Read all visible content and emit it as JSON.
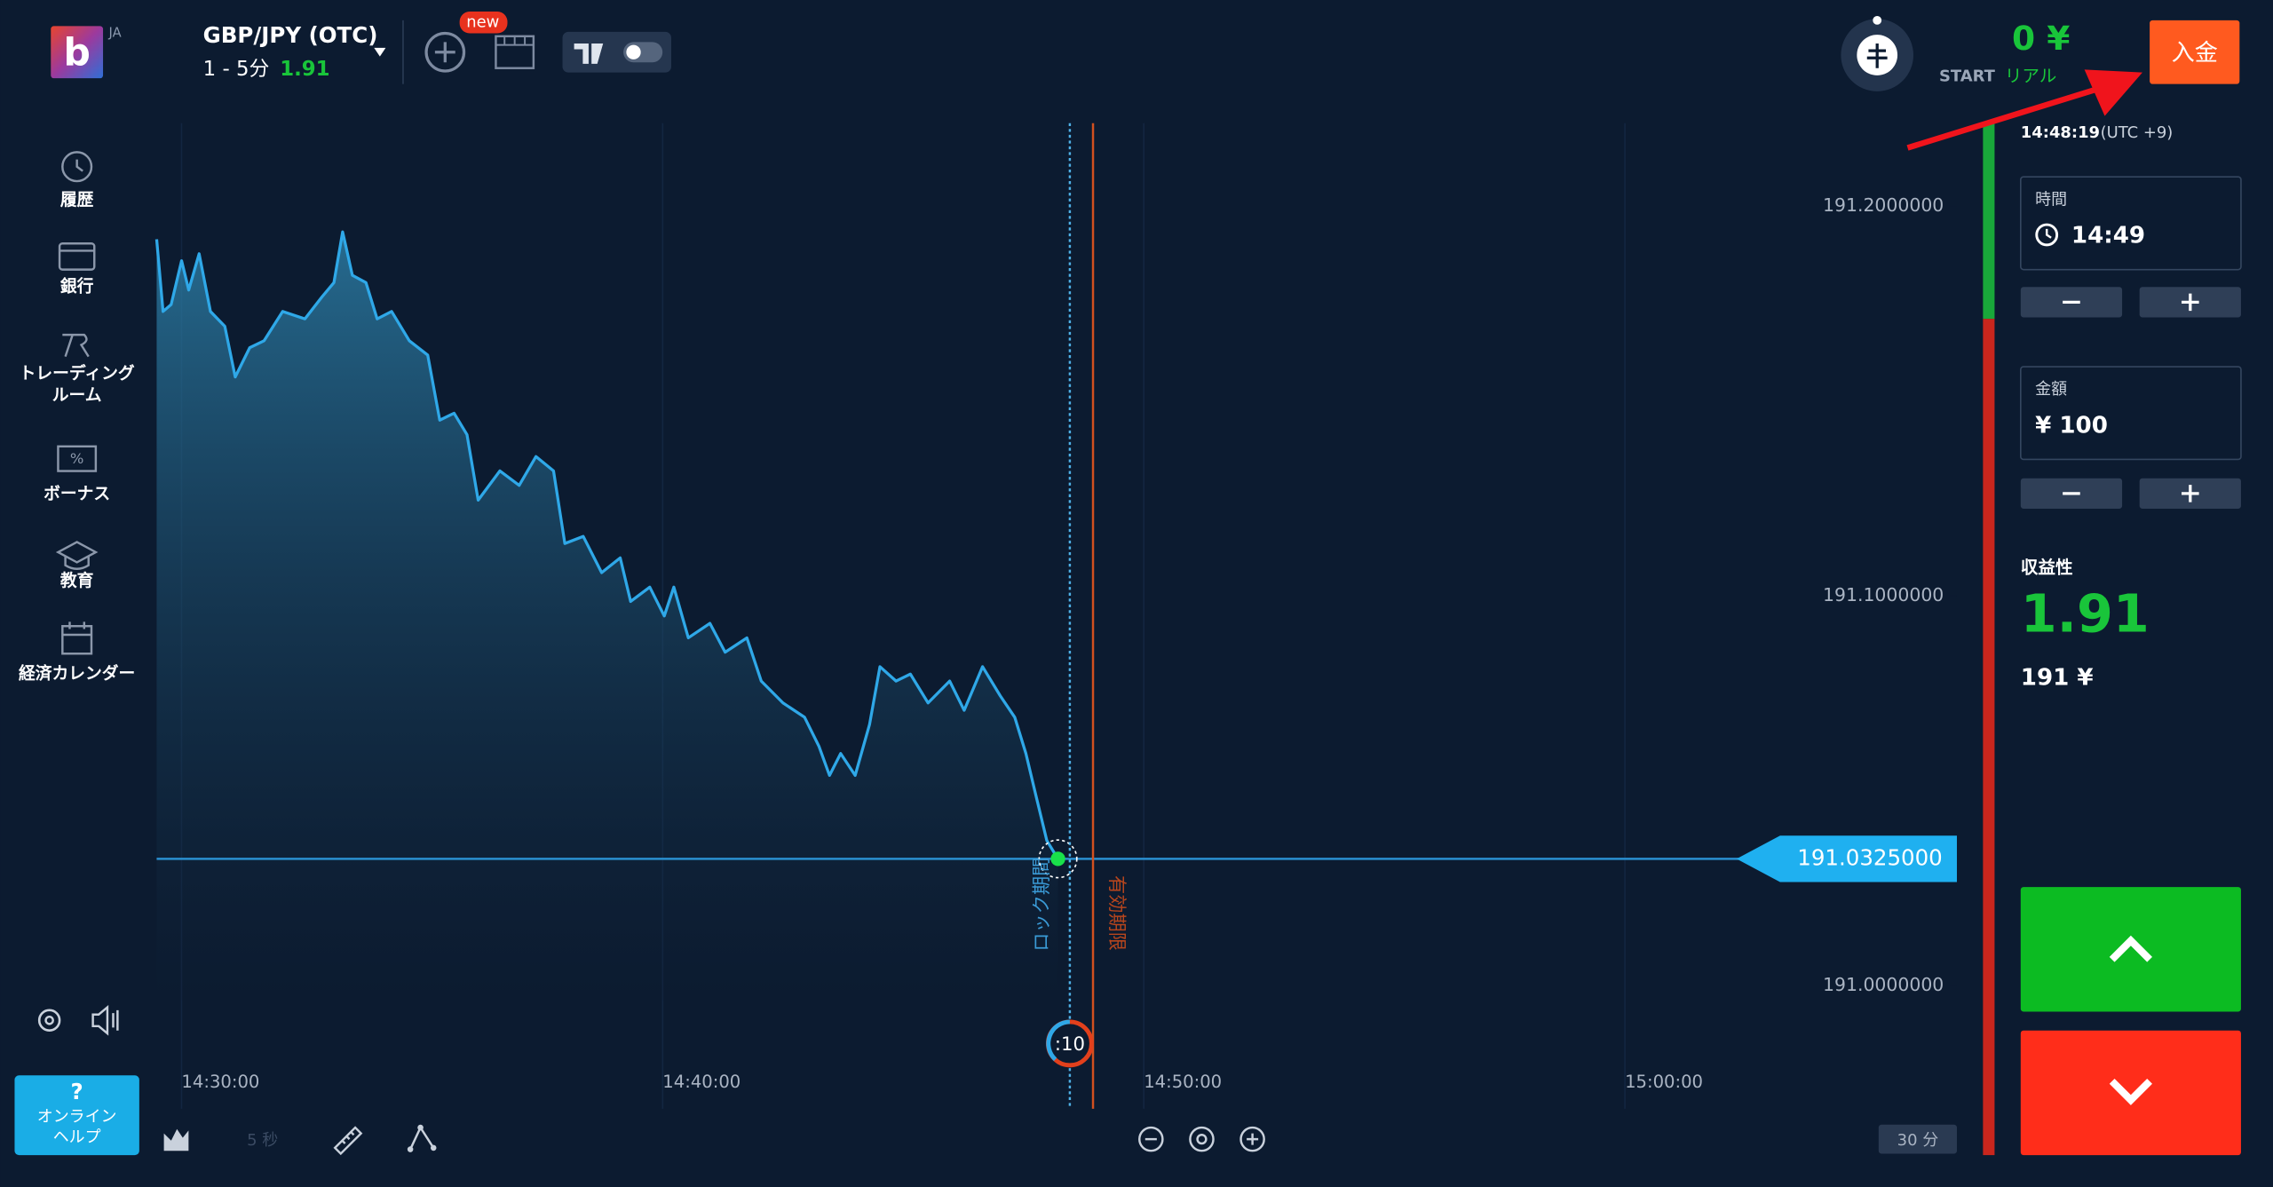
{
  "header": {
    "lang": "JA",
    "asset": "GBP/JPY (OTC)",
    "timeframe": "1 - 5分",
    "payout": "1.91",
    "new_badge": "new",
    "balance": "0 ¥",
    "account_type": "START",
    "account_mode": "リアル",
    "deposit_button": "入金"
  },
  "sidebar": {
    "items": [
      {
        "lines": [
          "履歴"
        ]
      },
      {
        "lines": [
          "銀行"
        ]
      },
      {
        "lines": [
          "トレーディング",
          "ルーム"
        ]
      },
      {
        "lines": [
          "ボーナス"
        ]
      },
      {
        "lines": [
          "教育"
        ]
      },
      {
        "lines": [
          "経済カレンダー"
        ]
      }
    ],
    "help_icon": "?",
    "help": [
      "オンライン",
      "ヘルプ"
    ]
  },
  "chart_data": {
    "type": "line",
    "color": "#2fa8e8",
    "x": [
      "14:29:29",
      "14:29:37",
      "14:29:47",
      "14:30:00",
      "14:30:09",
      "14:30:22",
      "14:30:36",
      "14:30:54",
      "14:31:07",
      "14:31:25",
      "14:31:43",
      "14:32:06",
      "14:32:34",
      "14:32:55",
      "14:33:10",
      "14:33:21",
      "14:33:33",
      "14:33:50",
      "14:34:04",
      "14:34:22",
      "14:34:44",
      "14:35:07",
      "14:35:22",
      "14:35:40",
      "14:35:56",
      "14:36:10",
      "14:36:37",
      "14:37:01",
      "14:37:22",
      "14:37:44",
      "14:37:58",
      "14:38:21",
      "14:38:44",
      "14:39:07",
      "14:39:20",
      "14:39:44",
      "14:40:02",
      "14:40:14",
      "14:40:32",
      "14:40:59",
      "14:41:18",
      "14:41:45",
      "14:42:03",
      "14:42:30",
      "14:42:57",
      "14:43:15",
      "14:43:28",
      "14:43:42",
      "14:44:00",
      "14:44:18",
      "14:44:31",
      "14:44:51",
      "14:45:09",
      "14:45:31",
      "14:45:58",
      "14:46:16",
      "14:46:39",
      "14:47:01",
      "14:47:19",
      "14:47:33",
      "14:47:46",
      "14:47:59",
      "14:48:13"
    ],
    "values": [
      191.1914,
      191.1729,
      191.1747,
      191.1859,
      191.1784,
      191.1877,
      191.1729,
      191.1691,
      191.1561,
      191.1636,
      191.1654,
      191.1729,
      191.171,
      191.1766,
      191.1803,
      191.1933,
      191.1822,
      191.1803,
      191.171,
      191.1729,
      191.1654,
      191.1617,
      191.145,
      191.1468,
      191.1413,
      191.1245,
      191.132,
      191.1283,
      191.1357,
      191.132,
      191.1134,
      191.1152,
      191.1059,
      191.1097,
      191.0985,
      191.1022,
      191.0948,
      191.1022,
      191.0892,
      191.0929,
      191.0855,
      191.0892,
      191.0781,
      191.0725,
      191.0688,
      191.0613,
      191.0539,
      191.0595,
      191.0539,
      191.0669,
      191.0818,
      191.0781,
      191.0799,
      191.0725,
      191.0781,
      191.0706,
      191.0818,
      191.0743,
      191.0688,
      191.0595,
      191.0483,
      191.0372,
      191.0325
    ],
    "xlim": [
      "14:29:29",
      "15:06:54"
    ],
    "ylim": [
      190.96,
      191.23
    ],
    "xticks": [
      "14:30:00",
      "14:40:00",
      "14:50:00",
      "15:00:00"
    ],
    "yticks": [
      {
        "value": 191.2,
        "label": "191.2000000"
      },
      {
        "value": 191.1,
        "label": "191.1000000"
      },
      {
        "value": 191.0,
        "label": "191.0000000"
      }
    ],
    "current_price": {
      "value": 191.0325,
      "label": "191.0325000"
    },
    "lock_label": "ロック期間",
    "expiry_label": "有効期限",
    "countdown": ":10"
  },
  "toolbar": {
    "tick_interval": "5 秒",
    "zoom": "30 分"
  },
  "trade_panel": {
    "clock": "14:48:19",
    "timezone": "(UTC +9)",
    "time_label": "時間",
    "time_value": "14:49",
    "amount_label": "金額",
    "amount_value": "¥ 100",
    "profitability_label": "収益性",
    "profitability": "1.91",
    "payout_amount": "191 ¥"
  }
}
